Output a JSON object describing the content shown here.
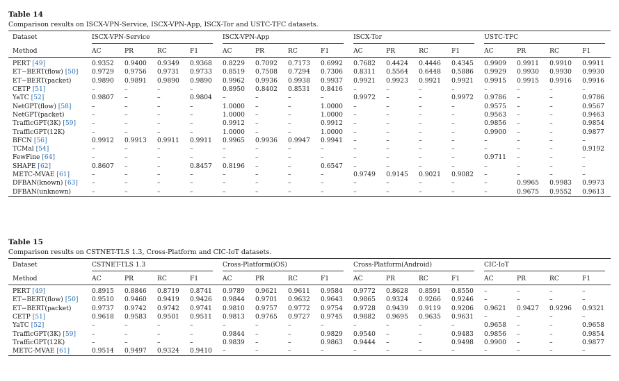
{
  "tables": [
    {
      "number": "Table 14",
      "caption": "Comparison results on ISCX-VPN-Service, ISCX-VPN-App, ISCX-Tor and USTC-TFC datasets.",
      "dataset_label": "Dataset",
      "method_label": "Method",
      "groups": [
        "ISCX-VPN-Service",
        "ISCX-VPN-App",
        "ISCX-Tor",
        "USTC-TFC"
      ],
      "metrics": [
        "AC",
        "PR",
        "RC",
        "F1"
      ],
      "rows": [
        {
          "name": "PERT",
          "ref": "[49]",
          "values": [
            "0.9352",
            "0.9400",
            "0.9349",
            "0.9368",
            "0.8229",
            "0.7092",
            "0.7173",
            "0.6992",
            "0.7682",
            "0.4424",
            "0.4446",
            "0.4345",
            "0.9909",
            "0.9911",
            "0.9910",
            "0.9911"
          ]
        },
        {
          "name": "ET−BERT(flow)",
          "ref": "[50]",
          "values": [
            "0.9729",
            "0.9756",
            "0.9731",
            "0.9733",
            "0.8519",
            "0.7508",
            "0.7294",
            "0.7306",
            "0.8311",
            "0.5564",
            "0.6448",
            "0.5886",
            "0.9929",
            "0.9930",
            "0.9930",
            "0.9930"
          ]
        },
        {
          "name": "ET−BERT(packet)",
          "ref": "",
          "values": [
            "0.9890",
            "0.9891",
            "0.9890",
            "0.9890",
            "0.9962",
            "0.9936",
            "0.9938",
            "0.9937",
            "0.9921",
            "0.9923",
            "0.9921",
            "0.9921",
            "0.9915",
            "0.9915",
            "0.9916",
            "0.9916"
          ]
        },
        {
          "name": "CETP",
          "ref": "[51]",
          "values": [
            "–",
            "–",
            "–",
            "–",
            "0.8950",
            "0.8402",
            "0.8531",
            "0.8416",
            "–",
            "–",
            "–",
            "–",
            "–",
            "–",
            "–",
            "–"
          ]
        },
        {
          "name": "YaTC",
          "ref": "[52]",
          "values": [
            "0.9807",
            "–",
            "–",
            "0.9804",
            "–",
            "–",
            "–",
            "–",
            "0.9972",
            "–",
            "–",
            "0.9972",
            "0.9786",
            "–",
            "–",
            "0.9786"
          ]
        },
        {
          "name": "NetGPT(flow)",
          "ref": "[58]",
          "values": [
            "–",
            "–",
            "–",
            "–",
            "1.0000",
            "–",
            "–",
            "1.0000",
            "–",
            "–",
            "–",
            "–",
            "0.9575",
            "–",
            "–",
            "0.9567"
          ]
        },
        {
          "name": "NetGPT(packet)",
          "ref": "",
          "values": [
            "–",
            "–",
            "–",
            "–",
            "1.0000",
            "–",
            "–",
            "1.0000",
            "–",
            "–",
            "–",
            "–",
            "0.9563",
            "–",
            "–",
            "0.9463"
          ]
        },
        {
          "name": "TrafficGPT(3K)",
          "ref": "[59]",
          "values": [
            "–",
            "–",
            "–",
            "–",
            "0.9912",
            "–",
            "–",
            "0.9912",
            "–",
            "–",
            "–",
            "–",
            "0.9856",
            "–",
            "–",
            "0.9854"
          ]
        },
        {
          "name": "TrafficGPT(12K)",
          "ref": "",
          "values": [
            "–",
            "–",
            "–",
            "–",
            "1.0000",
            "–",
            "–",
            "1.0000",
            "–",
            "–",
            "–",
            "–",
            "0.9900",
            "–",
            "–",
            "0.9877"
          ]
        },
        {
          "name": "BFCN",
          "ref": "[56]",
          "values": [
            "0.9912",
            "0.9913",
            "0.9911",
            "0.9911",
            "0.9965",
            "0.9936",
            "0.9947",
            "0.9941",
            "–",
            "–",
            "–",
            "–",
            "–",
            "–",
            "–",
            "–"
          ]
        },
        {
          "name": "TCMal",
          "ref": "[54]",
          "values": [
            "–",
            "–",
            "–",
            "–",
            "–",
            "–",
            "–",
            "–",
            "–",
            "–",
            "–",
            "–",
            "–",
            "–",
            "–",
            "0.9192"
          ]
        },
        {
          "name": "FewFine",
          "ref": "[64]",
          "values": [
            "–",
            "–",
            "–",
            "–",
            "–",
            "–",
            "–",
            "–",
            "–",
            "–",
            "–",
            "–",
            "0.9711",
            "–",
            "–",
            "–"
          ]
        },
        {
          "name": "SHAPE",
          "ref": "[62]",
          "values": [
            "0.8607",
            "–",
            "–",
            "0.8457",
            "0.8196",
            "–",
            "–",
            "0.6547",
            "–",
            "–",
            "–",
            "–",
            "–",
            "–",
            "–",
            "–"
          ]
        },
        {
          "name": "METC-MVAE",
          "ref": "[61]",
          "values": [
            "–",
            "–",
            "–",
            "–",
            "–",
            "–",
            "–",
            "–",
            "0.9749",
            "0.9145",
            "0.9021",
            "0.9082",
            "–",
            "–",
            "–",
            "–"
          ]
        },
        {
          "name": "DFBAN(known)",
          "ref": "[63]",
          "values": [
            "–",
            "–",
            "–",
            "–",
            "–",
            "–",
            "–",
            "–",
            "–",
            "–",
            "–",
            "–",
            "–",
            "0.9965",
            "0.9983",
            "0.9973"
          ]
        },
        {
          "name": "DFBAN(unknown)",
          "ref": "",
          "values": [
            "–",
            "–",
            "–",
            "–",
            "–",
            "–",
            "–",
            "–",
            "–",
            "–",
            "–",
            "–",
            "–",
            "0.9675",
            "0.9552",
            "0.9613"
          ]
        }
      ]
    },
    {
      "number": "Table 15",
      "caption": "Comparison results on CSTNET-TLS 1.3, Cross-Platform and CIC-IoT datasets.",
      "dataset_label": "Dataset",
      "method_label": "Method",
      "groups": [
        "CSTNET-TLS 1.3",
        "Cross-Platform(iOS)",
        "Cross-Platform(Android)",
        "CIC-IoT"
      ],
      "metrics": [
        "AC",
        "PR",
        "RC",
        "F1"
      ],
      "rows": [
        {
          "name": "PERT",
          "ref": "[49]",
          "values": [
            "0.8915",
            "0.8846",
            "0.8719",
            "0.8741",
            "0.9789",
            "0.9621",
            "0.9611",
            "0.9584",
            "0.9772",
            "0.8628",
            "0.8591",
            "0.8550",
            "–",
            "–",
            "–",
            "–"
          ]
        },
        {
          "name": "ET−BERT(flow)",
          "ref": "[50]",
          "values": [
            "0.9510",
            "0.9460",
            "0.9419",
            "0.9426",
            "0.9844",
            "0.9701",
            "0.9632",
            "0.9643",
            "0.9865",
            "0.9324",
            "0.9266",
            "0.9246",
            "–",
            "–",
            "–",
            "–"
          ]
        },
        {
          "name": "ET−BERT(packet)",
          "ref": "",
          "values": [
            "0.9737",
            "0.9742",
            "0.9742",
            "0.9741",
            "0.9810",
            "0.9757",
            "0.9772",
            "0.9754",
            "0.9728",
            "0.9439",
            "0.9119",
            "0.9206",
            "0.9621",
            "0.9427",
            "0.9296",
            "0.9321"
          ]
        },
        {
          "name": "CETP",
          "ref": "[51]",
          "values": [
            "0.9618",
            "0.9583",
            "0.9501",
            "0.9511",
            "0.9813",
            "0.9765",
            "0.9727",
            "0.9745",
            "0.9882",
            "0.9695",
            "0.9635",
            "0.9631",
            "–",
            "–",
            "–",
            "–"
          ]
        },
        {
          "name": "YaTC",
          "ref": "[52]",
          "values": [
            "–",
            "–",
            "–",
            "–",
            "–",
            "–",
            "–",
            "–",
            "–",
            "–",
            "–",
            "–",
            "0.9658",
            "–",
            "–",
            "0.9658"
          ]
        },
        {
          "name": "TrafficGPT(3K)",
          "ref": "[59]",
          "values": [
            "–",
            "–",
            "–",
            "–",
            "0.9844",
            "–",
            "–",
            "0.9829",
            "0.9540",
            "–",
            "–",
            "0.9483",
            "0.9856",
            "–",
            "–",
            "0.9854"
          ]
        },
        {
          "name": "TrafficGPT(12K)",
          "ref": "",
          "values": [
            "–",
            "–",
            "–",
            "–",
            "0.9839",
            "–",
            "–",
            "0.9863",
            "0.9444",
            "–",
            "–",
            "0.9498",
            "0.9900",
            "–",
            "–",
            "0.9877"
          ]
        },
        {
          "name": "METC-MVAE",
          "ref": "[61]",
          "values": [
            "0.9514",
            "0.9497",
            "0.9324",
            "0.9410",
            "–",
            "–",
            "–",
            "–",
            "–",
            "–",
            "–",
            "–",
            "–",
            "–",
            "–",
            "–"
          ]
        }
      ]
    }
  ]
}
